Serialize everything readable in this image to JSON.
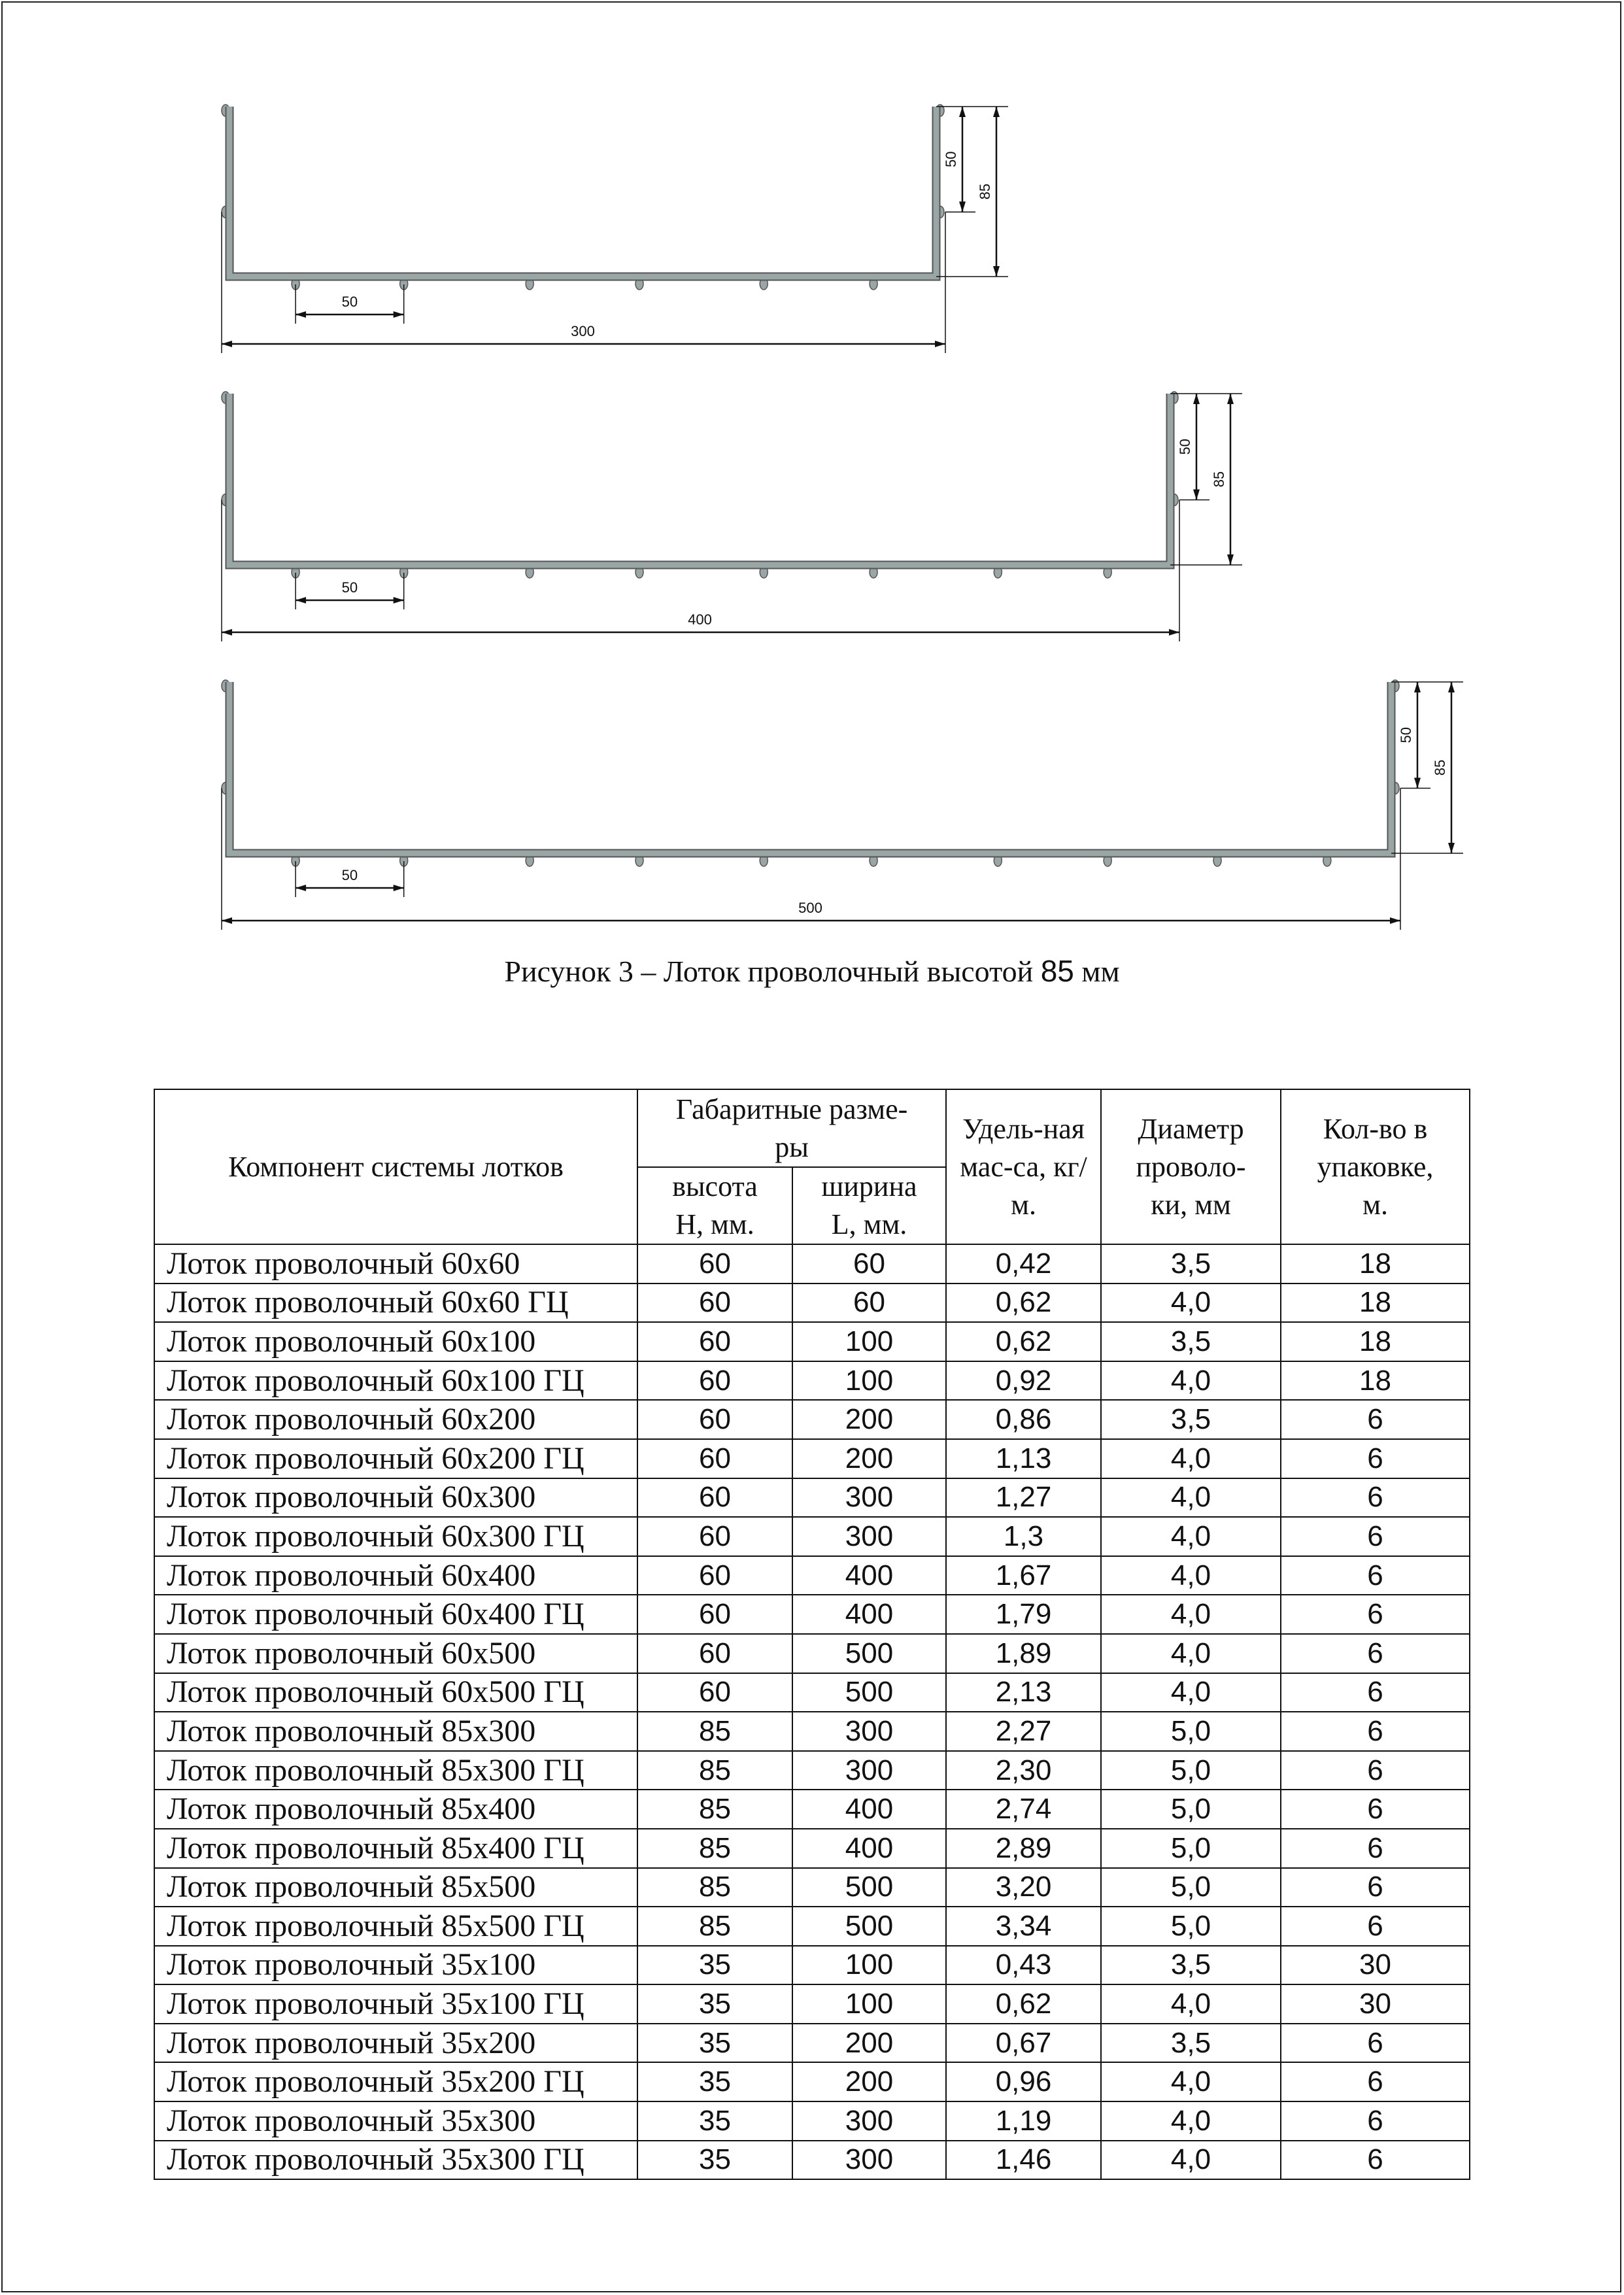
{
  "figures": [
    {
      "width_label": "300",
      "pitch_label": "50",
      "side_pitch_label": "50",
      "height_label": "85",
      "bottom_wires": 6
    },
    {
      "width_label": "400",
      "pitch_label": "50",
      "side_pitch_label": "50",
      "height_label": "85",
      "bottom_wires": 8
    },
    {
      "width_label": "500",
      "pitch_label": "50",
      "side_pitch_label": "50",
      "height_label": "85",
      "bottom_wires": 10
    }
  ],
  "caption": {
    "prefix": "Рисунок 3 – Лоток проволочный высотой ",
    "number": "85",
    "suffix": " мм"
  },
  "table": {
    "headers": {
      "component": "Компонент системы лотков",
      "dimensions": "Габаритные разме-ры",
      "height": "высота H, мм.",
      "width": "ширина L, мм.",
      "mass": "Удель-ная мас-са, кг/м.",
      "diameter": "Диаметр проволо-ки, мм",
      "pack": "Кол-во в упаковке, м."
    },
    "rows": [
      [
        "Лоток проволочный 60x60",
        "60",
        "60",
        "0,42",
        "3,5",
        "18"
      ],
      [
        "Лоток проволочный 60x60 ГЦ",
        "60",
        "60",
        "0,62",
        "4,0",
        "18"
      ],
      [
        "Лоток проволочный 60x100",
        "60",
        "100",
        "0,62",
        "3,5",
        "18"
      ],
      [
        "Лоток проволочный 60x100 ГЦ",
        "60",
        "100",
        "0,92",
        "4,0",
        "18"
      ],
      [
        "Лоток проволочный 60x200",
        "60",
        "200",
        "0,86",
        "3,5",
        "6"
      ],
      [
        "Лоток проволочный 60x200 ГЦ",
        "60",
        "200",
        "1,13",
        "4,0",
        "6"
      ],
      [
        "Лоток проволочный 60x300",
        "60",
        "300",
        "1,27",
        "4,0",
        "6"
      ],
      [
        "Лоток проволочный 60x300 ГЦ",
        "60",
        "300",
        "1,3",
        "4,0",
        "6"
      ],
      [
        "Лоток проволочный 60x400",
        "60",
        "400",
        "1,67",
        "4,0",
        "6"
      ],
      [
        "Лоток проволочный 60x400 ГЦ",
        "60",
        "400",
        "1,79",
        "4,0",
        "6"
      ],
      [
        "Лоток проволочный 60x500",
        "60",
        "500",
        "1,89",
        "4,0",
        "6"
      ],
      [
        "Лоток проволочный 60x500 ГЦ",
        "60",
        "500",
        "2,13",
        "4,0",
        "6"
      ],
      [
        "Лоток проволочный 85x300",
        "85",
        "300",
        "2,27",
        "5,0",
        "6"
      ],
      [
        "Лоток проволочный 85x300 ГЦ",
        "85",
        "300",
        "2,30",
        "5,0",
        "6"
      ],
      [
        "Лоток проволочный 85x400",
        "85",
        "400",
        "2,74",
        "5,0",
        "6"
      ],
      [
        "Лоток проволочный 85x400 ГЦ",
        "85",
        "400",
        "2,89",
        "5,0",
        "6"
      ],
      [
        "Лоток проволочный 85x500",
        "85",
        "500",
        "3,20",
        "5,0",
        "6"
      ],
      [
        "Лоток проволочный 85x500 ГЦ",
        "85",
        "500",
        "3,34",
        "5,0",
        "6"
      ],
      [
        "Лоток проволочный 35x100",
        "35",
        "100",
        "0,43",
        "3,5",
        "30"
      ],
      [
        "Лоток проволочный 35x100 ГЦ",
        "35",
        "100",
        "0,62",
        "4,0",
        "30"
      ],
      [
        "Лоток проволочный 35x200",
        "35",
        "200",
        "0,67",
        "3,5",
        "6"
      ],
      [
        "Лоток проволочный 35x200 ГЦ",
        "35",
        "200",
        "0,96",
        "4,0",
        "6"
      ],
      [
        "Лоток проволочный 35x300",
        "35",
        "300",
        "1,19",
        "4,0",
        "6"
      ],
      [
        "Лоток проволочный 35x300 ГЦ",
        "35",
        "300",
        "1,46",
        "4,0",
        "6"
      ]
    ]
  },
  "colors": {
    "wire": "#9aa5a6",
    "wire_edge": "#555",
    "line": "#111"
  }
}
